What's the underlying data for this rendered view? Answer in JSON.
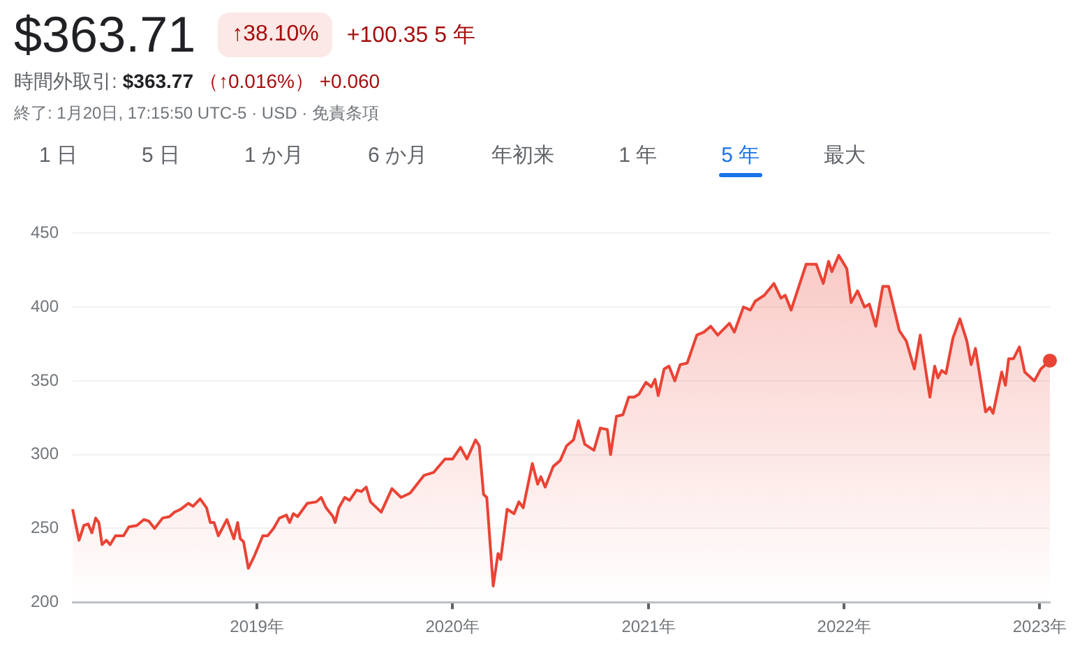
{
  "chart_data": {
    "type": "area",
    "title": "$363.71",
    "annotations": [
      "↑38.10%",
      "+100.35 5 年",
      "時間外取引:",
      "$363.77",
      "（↑0.016%）",
      "+0.060",
      "終了: 1月20日, 17:15:50 UTC-5 · USD · 免責条項",
      "1 日",
      "5 日",
      "1 か月",
      "6 か月",
      "年初来",
      "1 年",
      "5 年",
      "最大"
    ],
    "x": [
      "2018-01-22",
      "2018-02-03",
      "2018-02-12",
      "2018-02-20",
      "2018-02-27",
      "2018-03-06",
      "2018-03-12",
      "2018-03-18",
      "2018-03-26",
      "2018-04-02",
      "2018-04-12",
      "2018-04-27",
      "2018-05-07",
      "2018-05-22",
      "2018-06-04",
      "2018-06-13",
      "2018-06-24",
      "2018-07-09",
      "2018-07-22",
      "2018-07-31",
      "2018-08-12",
      "2018-08-26",
      "2018-09-04",
      "2018-09-17",
      "2018-09-29",
      "2018-10-06",
      "2018-10-13",
      "2018-10-21",
      "2018-11-06",
      "2018-11-19",
      "2018-11-26",
      "2018-12-01",
      "2018-12-07",
      "2018-12-16",
      "2018-12-28",
      "2019-01-12",
      "2019-01-21",
      "2019-02-01",
      "2019-02-12",
      "2019-02-25",
      "2019-03-03",
      "2019-03-10",
      "2019-03-18",
      "2019-04-05",
      "2019-04-22",
      "2019-05-01",
      "2019-05-10",
      "2019-05-23",
      "2019-05-27",
      "2019-06-03",
      "2019-06-14",
      "2019-06-23",
      "2019-07-06",
      "2019-07-15",
      "2019-07-24",
      "2019-08-01",
      "2019-08-21",
      "2019-09-10",
      "2019-09-27",
      "2019-10-14",
      "2019-11-09",
      "2019-11-27",
      "2019-12-18",
      "2020-01-01",
      "2020-01-16",
      "2020-01-28",
      "2020-02-13",
      "2020-02-20",
      "2020-02-28",
      "2020-03-05",
      "2020-03-17",
      "2020-03-26",
      "2020-03-31",
      "2020-04-12",
      "2020-04-25",
      "2020-05-04",
      "2020-05-12",
      "2020-05-29",
      "2020-06-08",
      "2020-06-14",
      "2020-06-22",
      "2020-07-07",
      "2020-07-20",
      "2020-08-01",
      "2020-08-14",
      "2020-08-23",
      "2020-09-04",
      "2020-09-21",
      "2020-10-03",
      "2020-10-16",
      "2020-10-22",
      "2020-11-02",
      "2020-11-14",
      "2020-11-25",
      "2020-12-05",
      "2020-12-14",
      "2020-12-27",
      "2021-01-06",
      "2021-01-13",
      "2021-01-19",
      "2021-01-30",
      "2021-02-08",
      "2021-02-19",
      "2021-03-01",
      "2021-03-14",
      "2021-04-01",
      "2021-04-14",
      "2021-04-27",
      "2021-05-10",
      "2021-06-01",
      "2021-06-10",
      "2021-06-27",
      "2021-07-10",
      "2021-07-19",
      "2021-08-05",
      "2021-08-23",
      "2021-09-05",
      "2021-09-13",
      "2021-09-24",
      "2021-10-22",
      "2021-11-10",
      "2021-11-23",
      "2021-12-03",
      "2021-12-09",
      "2021-12-22",
      "2022-01-06",
      "2022-01-14",
      "2022-01-26",
      "2022-02-08",
      "2022-02-17",
      "2022-03-01",
      "2022-03-14",
      "2022-03-25",
      "2022-04-14",
      "2022-04-27",
      "2022-05-12",
      "2022-05-23",
      "2022-06-10",
      "2022-06-19",
      "2022-06-25",
      "2022-07-02",
      "2022-07-10",
      "2022-07-23",
      "2022-08-05",
      "2022-08-18",
      "2022-08-26",
      "2022-09-03",
      "2022-09-22",
      "2022-09-30",
      "2022-10-06",
      "2022-10-22",
      "2022-10-29",
      "2022-11-04",
      "2022-11-13",
      "2022-11-24",
      "2022-12-04",
      "2022-12-22",
      "2023-01-03",
      "2023-01-20"
    ],
    "series": [
      {
        "color": "#ea4335",
        "values": [
          263,
          242,
          252,
          253,
          247,
          257,
          254,
          239,
          242,
          239,
          245,
          245,
          251,
          252,
          256,
          255,
          250,
          257,
          258,
          261,
          263,
          267,
          265,
          270,
          264,
          254,
          254,
          245,
          256,
          243,
          254,
          243,
          241,
          223,
          232,
          245,
          245,
          250,
          257,
          259,
          254,
          260,
          258,
          267,
          268,
          271,
          264,
          258,
          254,
          264,
          271,
          269,
          276,
          275,
          278,
          268,
          261,
          277,
          271,
          274,
          286,
          288,
          297,
          297,
          305,
          297,
          310,
          306,
          273,
          271,
          211,
          233,
          229,
          263,
          260,
          268,
          264,
          294,
          280,
          285,
          278,
          292,
          296,
          306,
          310,
          323,
          307,
          303,
          318,
          317,
          300,
          326,
          327,
          339,
          339,
          341,
          349,
          346,
          351,
          340,
          358,
          360,
          350,
          361,
          362,
          381,
          383,
          387,
          381,
          389,
          383,
          400,
          398,
          404,
          408,
          416,
          406,
          408,
          398,
          429,
          429,
          416,
          431,
          424,
          435,
          426,
          403,
          411,
          400,
          402,
          387,
          414,
          414,
          384,
          377,
          358,
          381,
          339,
          360,
          352,
          357,
          355,
          379,
          392,
          377,
          361,
          372,
          329,
          332,
          328,
          356,
          347,
          365,
          365,
          373,
          356,
          350,
          358,
          363.71
        ]
      }
    ],
    "xlim": [
      "2018-01-22",
      "2023-01-20"
    ],
    "xticks": [
      {
        "value": "2019-01-01",
        "label": "2019年"
      },
      {
        "value": "2020-01-01",
        "label": "2020年"
      },
      {
        "value": "2021-01-01",
        "label": "2021年"
      },
      {
        "value": "2022-01-01",
        "label": "2022年"
      },
      {
        "value": "2023-01-01",
        "label": "2023年"
      }
    ],
    "ylim": [
      200,
      450
    ],
    "yticks": [
      200,
      250,
      300,
      350,
      400,
      450
    ],
    "grid": "y",
    "legend": false
  }
}
